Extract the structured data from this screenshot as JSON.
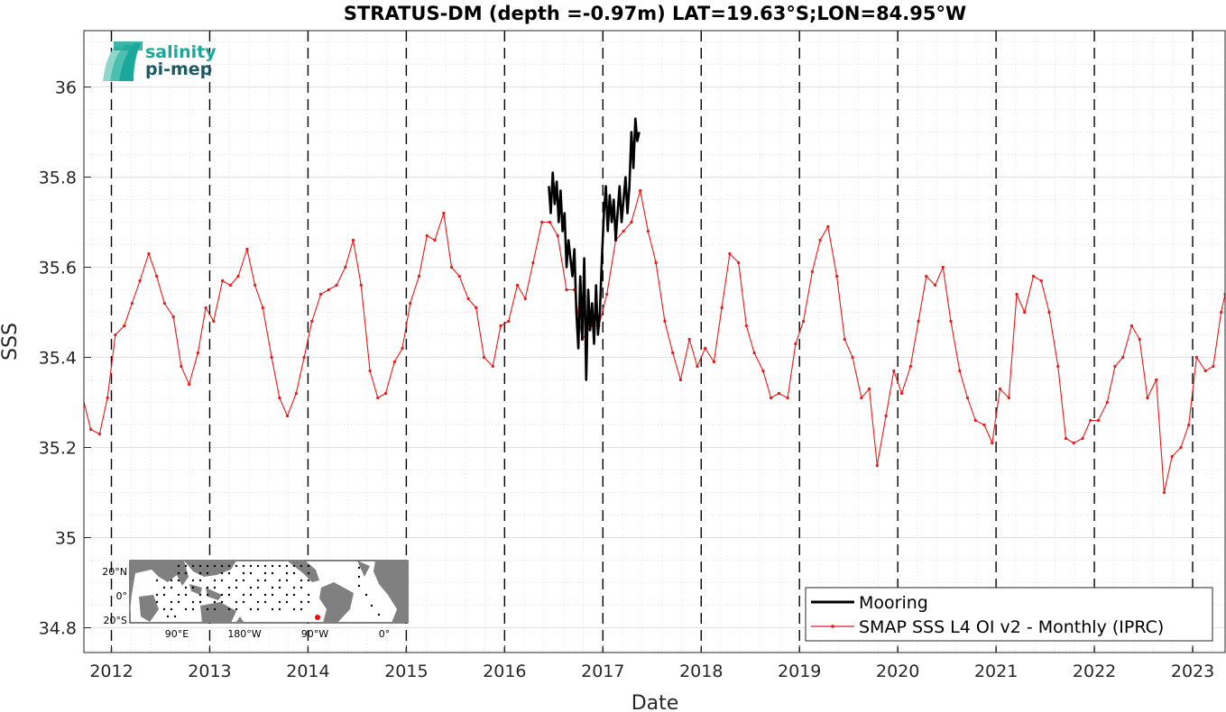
{
  "chart_data": {
    "type": "line",
    "title": "STRATUS-DM (depth =-0.97m) LAT=19.63°S;LON=84.95°W",
    "xlabel": "Date",
    "ylabel": "SSS",
    "xlim": [
      2011.72,
      2023.33
    ],
    "ylim": [
      34.745,
      36.125
    ],
    "x_ticks": [
      2012,
      2013,
      2014,
      2015,
      2016,
      2017,
      2018,
      2019,
      2020,
      2021,
      2022,
      2023
    ],
    "x_tick_labels": [
      "2012",
      "2013",
      "2014",
      "2015",
      "2016",
      "2017",
      "2018",
      "2019",
      "2020",
      "2021",
      "2022",
      "2023"
    ],
    "y_ticks": [
      34.8,
      35,
      35.2,
      35.4,
      35.6,
      35.8,
      36
    ],
    "y_tick_labels": [
      "34.8",
      "35",
      "35.2",
      "35.4",
      "35.6",
      "35.8",
      "36"
    ],
    "grid": true,
    "minor_grid": true,
    "year_lines": "dashed",
    "legend_position": "bottom-right",
    "series": [
      {
        "name": "Mooring",
        "color": "#000000",
        "x": [
          2016.45,
          2016.47,
          2016.49,
          2016.51,
          2016.53,
          2016.55,
          2016.57,
          2016.59,
          2016.61,
          2016.63,
          2016.65,
          2016.67,
          2016.69,
          2016.71,
          2016.73,
          2016.75,
          2016.77,
          2016.79,
          2016.81,
          2016.83,
          2016.85,
          2016.87,
          2016.89,
          2016.91,
          2016.93,
          2016.95,
          2016.97,
          2016.99,
          2017.01,
          2017.03,
          2017.05,
          2017.07,
          2017.09,
          2017.11,
          2017.13,
          2017.15,
          2017.17,
          2017.19,
          2017.21,
          2017.23,
          2017.25,
          2017.27,
          2017.29,
          2017.31,
          2017.33,
          2017.35,
          2017.37
        ],
        "y": [
          35.78,
          35.72,
          35.81,
          35.74,
          35.79,
          35.7,
          35.77,
          35.68,
          35.72,
          35.6,
          35.66,
          35.62,
          35.58,
          35.64,
          35.5,
          35.42,
          35.58,
          35.44,
          35.62,
          35.35,
          35.55,
          35.46,
          35.52,
          35.43,
          35.56,
          35.45,
          35.5,
          35.62,
          35.72,
          35.78,
          35.68,
          35.76,
          35.7,
          35.75,
          35.66,
          35.72,
          35.78,
          35.7,
          35.75,
          35.8,
          35.72,
          35.78,
          35.9,
          35.82,
          35.93,
          35.88,
          35.9
        ]
      },
      {
        "name": "SMAP SSS L4 OI v2 - Monthly (IPRC)",
        "color": "#e41a1c",
        "x": [
          2011.71,
          2011.79,
          2011.88,
          2011.96,
          2012.04,
          2012.13,
          2012.21,
          2012.29,
          2012.38,
          2012.46,
          2012.54,
          2012.63,
          2012.71,
          2012.79,
          2012.88,
          2012.96,
          2013.04,
          2013.13,
          2013.21,
          2013.29,
          2013.38,
          2013.46,
          2013.54,
          2013.63,
          2013.71,
          2013.79,
          2013.88,
          2013.96,
          2014.04,
          2014.13,
          2014.21,
          2014.29,
          2014.38,
          2014.46,
          2014.54,
          2014.63,
          2014.71,
          2014.79,
          2014.88,
          2014.96,
          2015.04,
          2015.13,
          2015.21,
          2015.29,
          2015.38,
          2015.46,
          2015.54,
          2015.63,
          2015.71,
          2015.79,
          2015.88,
          2015.96,
          2016.04,
          2016.13,
          2016.21,
          2016.29,
          2016.38,
          2016.46,
          2016.54,
          2016.63,
          2016.71,
          2016.79,
          2016.88,
          2016.96,
          2017.04,
          2017.13,
          2017.21,
          2017.29,
          2017.38,
          2017.46,
          2017.54,
          2017.63,
          2017.71,
          2017.79,
          2017.88,
          2017.96,
          2018.04,
          2018.13,
          2018.21,
          2018.29,
          2018.38,
          2018.46,
          2018.54,
          2018.63,
          2018.71,
          2018.79,
          2018.88,
          2018.96,
          2019.04,
          2019.13,
          2019.21,
          2019.29,
          2019.38,
          2019.46,
          2019.54,
          2019.63,
          2019.71,
          2019.79,
          2019.88,
          2019.96,
          2020.04,
          2020.13,
          2020.21,
          2020.29,
          2020.38,
          2020.46,
          2020.54,
          2020.63,
          2020.71,
          2020.79,
          2020.88,
          2020.96,
          2021.04,
          2021.13,
          2021.21,
          2021.29,
          2021.38,
          2021.46,
          2021.54,
          2021.63,
          2021.71,
          2021.79,
          2021.88,
          2021.96,
          2022.04,
          2022.13,
          2022.21,
          2022.29,
          2022.38,
          2022.46,
          2022.54,
          2022.63,
          2022.71,
          2022.79,
          2022.88,
          2022.96,
          2023.04,
          2023.13,
          2023.21,
          2023.29,
          2023.33
        ],
        "y": [
          35.31,
          35.24,
          35.23,
          35.31,
          35.45,
          35.47,
          35.52,
          35.57,
          35.63,
          35.58,
          35.52,
          35.49,
          35.38,
          35.34,
          35.41,
          35.51,
          35.48,
          35.57,
          35.56,
          35.58,
          35.64,
          35.56,
          35.51,
          35.4,
          35.31,
          35.27,
          35.32,
          35.4,
          35.48,
          35.54,
          35.55,
          35.56,
          35.6,
          35.66,
          35.56,
          35.37,
          35.31,
          35.32,
          35.39,
          35.42,
          35.52,
          35.58,
          35.67,
          35.66,
          35.72,
          35.6,
          35.58,
          35.53,
          35.51,
          35.4,
          35.38,
          35.47,
          35.48,
          35.56,
          35.53,
          35.61,
          35.7,
          35.7,
          35.67,
          35.55,
          35.55,
          35.44,
          35.47,
          35.47,
          35.54,
          35.66,
          35.68,
          35.7,
          35.77,
          35.68,
          35.61,
          35.48,
          35.41,
          35.35,
          35.44,
          35.38,
          35.42,
          35.39,
          35.51,
          35.63,
          35.61,
          35.47,
          35.41,
          35.37,
          35.31,
          35.32,
          35.31,
          35.43,
          35.48,
          35.59,
          35.66,
          35.69,
          35.58,
          35.44,
          35.4,
          35.31,
          35.33,
          35.16,
          35.27,
          35.37,
          35.32,
          35.38,
          35.48,
          35.58,
          35.56,
          35.6,
          35.48,
          35.37,
          35.31,
          35.26,
          35.25,
          35.21,
          35.33,
          35.31,
          35.54,
          35.5,
          35.58,
          35.57,
          35.5,
          35.38,
          35.22,
          35.21,
          35.22,
          35.26,
          35.26,
          35.3,
          35.38,
          35.4,
          35.47,
          35.44,
          35.31,
          35.35,
          35.1,
          35.18,
          35.2,
          35.25,
          35.4,
          35.37,
          35.38,
          35.5,
          35.54
        ]
      }
    ]
  },
  "logo": {
    "line1": "salinity",
    "line2": "pi-mep",
    "color1": "#1aa89a",
    "color2": "#1d5a63"
  },
  "inset_map": {
    "lat_labels": [
      "20°N",
      "0°",
      "20°S"
    ],
    "lon_labels": [
      "90°E",
      "180°W",
      "90°W",
      "0°"
    ],
    "land_color": "#808080",
    "ocean_color": "#ffffff",
    "location_marker_color": "#ff0000"
  }
}
